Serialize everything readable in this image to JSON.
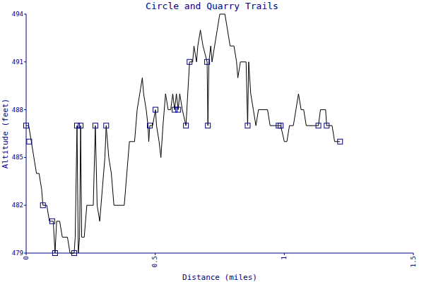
{
  "chart_data": {
    "type": "line",
    "title": "Circle and Quarry Trails",
    "x_label": "Distance (miles)",
    "y_label": "Altitude (feet)",
    "xlim": [
      0,
      1.5
    ],
    "xticks": [
      0,
      0.5,
      1,
      1.5
    ],
    "ylim": [
      479,
      494
    ],
    "yticks": [
      479,
      482,
      485,
      488,
      491,
      494
    ],
    "grid": false,
    "series": [
      {
        "color": "#000000",
        "line_style": "solid",
        "marker": "none",
        "x": [
          0,
          0.01,
          0.02,
          0.03,
          0.04,
          0.05,
          0.06,
          0.065,
          0.08,
          0.09,
          0.105,
          0.112,
          0.118,
          0.13,
          0.14,
          0.16,
          0.17,
          0.186,
          0.19,
          0.197,
          0.202,
          0.207,
          0.211,
          0.215,
          0.225,
          0.235,
          0.26,
          0.268,
          0.275,
          0.285,
          0.295,
          0.305,
          0.31,
          0.32,
          0.33,
          0.34,
          0.38,
          0.39,
          0.4,
          0.42,
          0.43,
          0.44,
          0.45,
          0.455,
          0.465,
          0.472,
          0.475,
          0.479,
          0.49,
          0.501,
          0.505,
          0.515,
          0.522,
          0.53,
          0.54,
          0.55,
          0.56,
          0.568,
          0.575,
          0.582,
          0.589,
          0.595,
          0.605,
          0.619,
          0.633,
          0.645,
          0.65,
          0.66,
          0.665,
          0.675,
          0.685,
          0.701,
          0.704,
          0.708,
          0.715,
          0.72,
          0.73,
          0.74,
          0.75,
          0.77,
          0.78,
          0.79,
          0.805,
          0.815,
          0.82,
          0.83,
          0.852,
          0.858,
          0.862,
          0.87,
          0.88,
          0.89,
          0.9,
          0.935,
          0.945,
          0.978,
          0.986,
          1.0,
          1.01,
          1.02,
          1.035,
          1.045,
          1.055,
          1.065,
          1.075,
          1.085,
          1.125,
          1.132,
          1.14,
          1.16,
          1.164,
          1.185,
          1.195,
          1.216
        ],
        "values": [
          487,
          487,
          486,
          485,
          484,
          484,
          483,
          482,
          482,
          481,
          481,
          479,
          481,
          481,
          480,
          480,
          479,
          479,
          480,
          487,
          479,
          480,
          487,
          480,
          480,
          482,
          482,
          487,
          482,
          481,
          483,
          485,
          487,
          485,
          484,
          482,
          482,
          484,
          486,
          486,
          488,
          489,
          490,
          489,
          488,
          487,
          486,
          487,
          487,
          488,
          487,
          486,
          485,
          487,
          489,
          488,
          488,
          489,
          488,
          489,
          488,
          489,
          488,
          487,
          491,
          491,
          492,
          491,
          492,
          493,
          492,
          491,
          487,
          491,
          492,
          491,
          492,
          493,
          494,
          494,
          493,
          492,
          492,
          491,
          490,
          491,
          491,
          487,
          491,
          489,
          488,
          487,
          488,
          488,
          487,
          487,
          487,
          486,
          486,
          487,
          487,
          488,
          489,
          488,
          488,
          487,
          487,
          487,
          488,
          488,
          487,
          487,
          486,
          486
        ]
      },
      {
        "color": "#000080",
        "line_style": "none",
        "marker": "square",
        "x": [
          0,
          0.012,
          0.065,
          0.101,
          0.112,
          0.186,
          0.197,
          0.211,
          0.268,
          0.31,
          0.479,
          0.501,
          0.575,
          0.589,
          0.619,
          0.633,
          0.701,
          0.704,
          0.858,
          0.978,
          0.986,
          1.132,
          1.164,
          1.216
        ],
        "values": [
          487,
          486,
          482,
          481,
          479,
          479,
          487,
          487,
          487,
          487,
          487,
          488,
          488,
          488,
          487,
          491,
          491,
          487,
          487,
          487,
          487,
          487,
          487,
          486
        ]
      }
    ]
  }
}
